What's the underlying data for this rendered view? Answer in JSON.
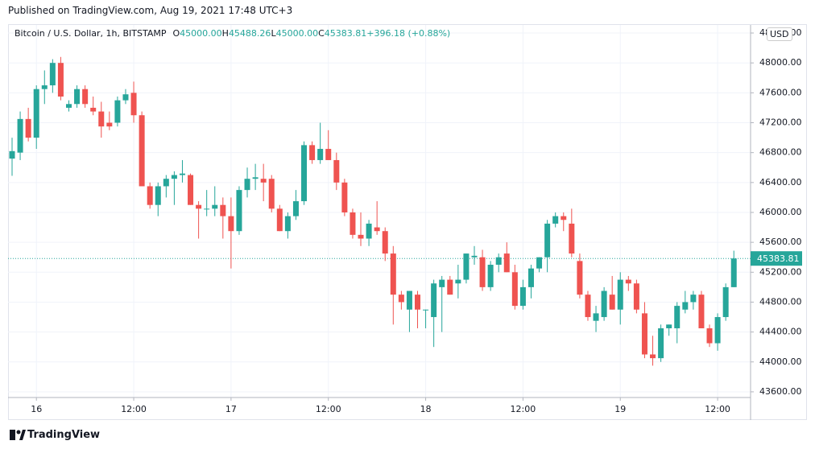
{
  "header": {
    "published": "Published on TradingView.com, Aug 19, 2021 17:48 UTC+3"
  },
  "footer": {
    "brand": "TradingView"
  },
  "chart_data": {
    "type": "candlestick",
    "title": "Bitcoin / U.S. Dollar, 1h, BITSTAMP",
    "ohlc": [
      {
        "label": "O",
        "value": "45000.00"
      },
      {
        "label": "H",
        "value": "45488.26"
      },
      {
        "label": "L",
        "value": "45000.00"
      },
      {
        "label": "C",
        "value": "45383.81"
      }
    ],
    "change": "+396.18 (+0.88%)",
    "currency": "USD",
    "up_color": "#26a69a",
    "down_color": "#ef5350",
    "grid": true,
    "last_price": {
      "value": 45383.81,
      "label": "45383.81"
    },
    "categories": [
      null,
      null,
      null,
      "16",
      null,
      null,
      null,
      null,
      null,
      null,
      null,
      null,
      null,
      null,
      null,
      "12:00",
      null,
      null,
      null,
      null,
      null,
      null,
      null,
      null,
      null,
      null,
      null,
      "17",
      null,
      null,
      null,
      null,
      null,
      null,
      null,
      null,
      null,
      null,
      null,
      "12:00",
      null,
      null,
      null,
      null,
      null,
      null,
      null,
      null,
      null,
      null,
      null,
      "18",
      null,
      null,
      null,
      null,
      null,
      null,
      null,
      null,
      null,
      null,
      null,
      "12:00",
      null,
      null,
      null,
      null,
      null,
      null,
      null,
      null,
      null,
      null,
      null,
      "19",
      null,
      null,
      null,
      null,
      null,
      null,
      null,
      null,
      null,
      null,
      null,
      "12:00",
      null,
      null
    ],
    "open": [
      46720,
      46800,
      47250,
      47000,
      47650,
      47700,
      48000,
      47400,
      47450,
      47650,
      47400,
      47350,
      47200,
      47200,
      47500,
      47600,
      47300,
      46350,
      46100,
      46350,
      46450,
      46500,
      46500,
      46100,
      46050,
      46050,
      46100,
      45950,
      45750,
      46300,
      46450,
      46450,
      46450,
      46050,
      45750,
      45950,
      46150,
      46900,
      46700,
      46850,
      46700,
      46400,
      46000,
      45700,
      45650,
      45800,
      45750,
      45450,
      44900,
      44700,
      44900,
      44700,
      44600,
      45000,
      45100,
      45050,
      45100,
      45400,
      45400,
      45000,
      45300,
      45450,
      45200,
      44750,
      45000,
      45250,
      45400,
      45850,
      45950,
      45850,
      45350,
      44900,
      44550,
      44600,
      44900,
      44700,
      45100,
      45050,
      44650,
      44100,
      44050,
      44450,
      44450,
      44700,
      44800,
      44900,
      44450,
      44250,
      44600,
      45000
    ],
    "high": [
      47000,
      47350,
      47400,
      47700,
      47900,
      48050,
      48080,
      47500,
      47700,
      47700,
      47550,
      47480,
      47350,
      47550,
      47650,
      47750,
      47350,
      46400,
      46400,
      46500,
      46550,
      46700,
      46520,
      46150,
      46300,
      46350,
      46200,
      46200,
      46350,
      46600,
      46650,
      46650,
      46500,
      46100,
      46000,
      46300,
      46950,
      46950,
      47200,
      47100,
      46800,
      46450,
      46050,
      46000,
      45900,
      46150,
      45800,
      45550,
      44950,
      44950,
      44950,
      44700,
      45100,
      45150,
      45150,
      45300,
      45450,
      45550,
      45500,
      45350,
      45450,
      45600,
      45300,
      45100,
      45300,
      45400,
      45900,
      46000,
      46000,
      46050,
      45450,
      44950,
      44750,
      45000,
      45150,
      45200,
      45150,
      45100,
      44800,
      44350,
      44500,
      44500,
      44800,
      44950,
      44950,
      44950,
      44500,
      44650,
      45050,
      45488.26
    ],
    "low": [
      46490,
      46700,
      46950,
      46850,
      47450,
      47600,
      47500,
      47350,
      47400,
      47400,
      47300,
      47000,
      47100,
      47150,
      47450,
      47200,
      46350,
      46050,
      45950,
      46200,
      46100,
      46400,
      46100,
      45650,
      45950,
      45950,
      45650,
      45250,
      45700,
      46200,
      46300,
      46150,
      46000,
      45750,
      45650,
      45900,
      46100,
      46650,
      46650,
      46700,
      46300,
      45950,
      45650,
      45550,
      45550,
      45700,
      45350,
      44500,
      44700,
      44400,
      44450,
      44450,
      44200,
      44400,
      44900,
      44850,
      45050,
      45300,
      44950,
      44950,
      45200,
      45200,
      44700,
      44700,
      44850,
      45200,
      45200,
      45800,
      45750,
      45400,
      44850,
      44550,
      44400,
      44550,
      44700,
      44500,
      44950,
      44650,
      44050,
      43950,
      44000,
      44350,
      44250,
      44650,
      44700,
      44450,
      44200,
      44150,
      44550,
      45000
    ],
    "close": [
      46820,
      47250,
      47000,
      47650,
      47700,
      48000,
      47550,
      47450,
      47650,
      47450,
      47350,
      47150,
      47150,
      47500,
      47580,
      47300,
      46350,
      46100,
      46350,
      46450,
      46500,
      46520,
      46100,
      46050,
      46050,
      46100,
      45950,
      45750,
      46300,
      46450,
      46470,
      46400,
      46050,
      45750,
      45950,
      46150,
      46900,
      46700,
      46850,
      46700,
      46400,
      46000,
      45700,
      45650,
      45850,
      45750,
      45450,
      44900,
      44800,
      44950,
      44700,
      44700,
      45050,
      45100,
      44900,
      45100,
      45450,
      45420,
      45000,
      45300,
      45400,
      45200,
      44750,
      45000,
      45250,
      45400,
      45850,
      45950,
      45900,
      45450,
      44900,
      44600,
      44650,
      44950,
      44700,
      45100,
      45050,
      44700,
      44100,
      44050,
      44450,
      44500,
      44750,
      44800,
      44900,
      44450,
      44250,
      44600,
      45000,
      45383.81
    ],
    "ylim": [
      43524,
      48508
    ],
    "yticks": [
      {
        "value": 43600,
        "label": "43600.00"
      },
      {
        "value": 44000,
        "label": "44000.00"
      },
      {
        "value": 44400,
        "label": "44400.00"
      },
      {
        "value": 44800,
        "label": "44800.00"
      },
      {
        "value": 45200,
        "label": "45200.00"
      },
      {
        "value": 45600,
        "label": "45600.00"
      },
      {
        "value": 46000,
        "label": "46000.00"
      },
      {
        "value": 46400,
        "label": "46400.00"
      },
      {
        "value": 46800,
        "label": "46800.00"
      },
      {
        "value": 47200,
        "label": "47200.00"
      },
      {
        "value": 47600,
        "label": "47600.00"
      },
      {
        "value": 48000,
        "label": "48000.00"
      },
      {
        "value": 48400,
        "label": "48400.00"
      }
    ]
  }
}
